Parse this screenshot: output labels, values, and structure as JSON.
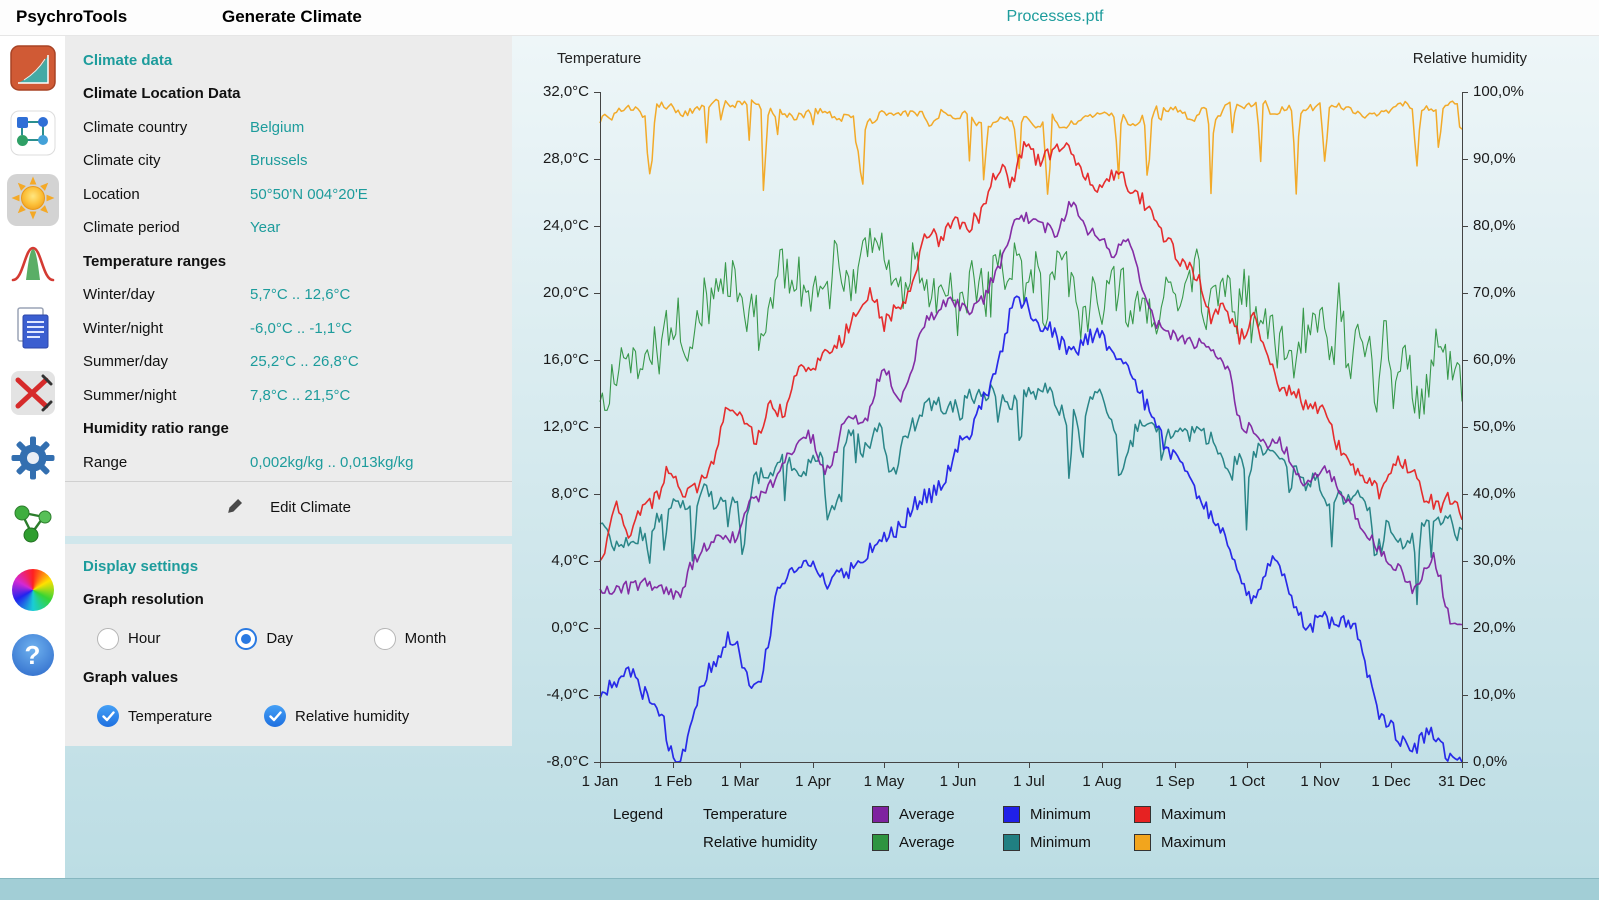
{
  "app": {
    "name": "PsychroTools",
    "screen_title": "Generate Climate",
    "document_title": "Processes.ptf"
  },
  "sidebar": {
    "tools": [
      {
        "icon": "psychrometric-chart-icon",
        "selected": false
      },
      {
        "icon": "process-scheme-icon",
        "selected": false
      },
      {
        "icon": "sun-climate-icon",
        "selected": true
      },
      {
        "icon": "distribution-curve-icon",
        "selected": false
      },
      {
        "icon": "report-document-icon",
        "selected": false
      },
      {
        "icon": "mixing-streams-icon",
        "selected": false
      },
      {
        "icon": "gear-settings-icon",
        "selected": false
      },
      {
        "icon": "linked-nodes-icon",
        "selected": false
      },
      {
        "icon": "color-wheel-icon",
        "selected": false
      },
      {
        "icon": "help-icon",
        "glyph": "?",
        "selected": false
      }
    ]
  },
  "climate_panel": {
    "section_title": "Climate data",
    "location_header": "Climate Location Data",
    "location_rows": [
      {
        "label": "Climate country",
        "value": "Belgium"
      },
      {
        "label": "Climate city",
        "value": "Brussels"
      },
      {
        "label": "Location",
        "value": "50°50'N  004°20'E"
      },
      {
        "label": "Climate period",
        "value": "Year"
      }
    ],
    "temperature_header": "Temperature ranges",
    "temperature_rows": [
      {
        "label": "Winter/day",
        "value": "5,7°C .. 12,6°C"
      },
      {
        "label": "Winter/night",
        "value": "-6,0°C .. -1,1°C"
      },
      {
        "label": "Summer/day",
        "value": "25,2°C .. 26,8°C"
      },
      {
        "label": "Summer/night",
        "value": "7,8°C .. 21,5°C"
      }
    ],
    "humidity_header": "Humidity ratio range",
    "humidity_rows": [
      {
        "label": "Range",
        "value": "0,002kg/kg .. 0,013kg/kg"
      }
    ],
    "edit_button_label": "Edit Climate"
  },
  "display_panel": {
    "section_title": "Display settings",
    "resolution_header": "Graph resolution",
    "resolution_options": [
      {
        "label": "Hour",
        "selected": false
      },
      {
        "label": "Day",
        "selected": true
      },
      {
        "label": "Month",
        "selected": false
      }
    ],
    "values_header": "Graph values",
    "value_options": [
      {
        "label": "Temperature",
        "checked": true
      },
      {
        "label": "Relative humidity",
        "checked": true
      }
    ]
  },
  "chart": {
    "left_axis_title": "Temperature",
    "right_axis_title": "Relative humidity",
    "legend": {
      "title": "Legend",
      "rows": [
        {
          "group": "Temperature",
          "items": [
            {
              "label": "Average",
              "color": "#7e22a0"
            },
            {
              "label": "Minimum",
              "color": "#2020e8"
            },
            {
              "label": "Maximum",
              "color": "#e62222"
            }
          ]
        },
        {
          "group": "Relative humidity",
          "items": [
            {
              "label": "Average",
              "color": "#2e9440"
            },
            {
              "label": "Minimum",
              "color": "#207f82"
            },
            {
              "label": "Maximum",
              "color": "#f2a51d"
            }
          ]
        }
      ]
    }
  },
  "chart_data": {
    "type": "line",
    "x_unit": "day of year",
    "x_tick_days": [
      0,
      31,
      59,
      90,
      120,
      151,
      181,
      212,
      243,
      273,
      304,
      334,
      364
    ],
    "x_tick_labels": [
      "1 Jan",
      "1 Feb",
      "1 Mar",
      "1 Apr",
      "1 May",
      "1 Jun",
      "1 Jul",
      "1 Aug",
      "1 Sep",
      "1 Oct",
      "1 Nov",
      "1 Dec",
      "31 Dec"
    ],
    "temp_axis": {
      "title": "Temperature",
      "min": -8,
      "max": 32,
      "tick_step": 4,
      "tick_labels": [
        "32,0°C",
        "28,0°C",
        "24,0°C",
        "20,0°C",
        "16,0°C",
        "12,0°C",
        "8,0°C",
        "4,0°C",
        "0,0°C",
        "-4,0°C",
        "-8,0°C"
      ]
    },
    "rh_axis": {
      "title": "Relative humidity",
      "min": 0,
      "max": 100,
      "tick_step": 10,
      "tick_labels": [
        "100,0%",
        "90,0%",
        "80,0%",
        "70,0%",
        "60,0%",
        "50,0%",
        "40,0%",
        "30,0%",
        "20,0%",
        "10,0%",
        "0,0%"
      ]
    },
    "series": [
      {
        "name": "Relative humidity / Maximum",
        "axis": "rh",
        "color": "#f2a51d",
        "width": 1.5,
        "monthly_values": [
          97.5,
          97,
          97.5,
          96.5,
          97,
          96,
          95.5,
          96,
          96.5,
          97.5,
          97,
          97.5,
          97.5
        ],
        "noise": {
          "seed": 7,
          "period": 5,
          "amp": 1.2,
          "jitter": 0.5,
          "dip": 13
        }
      },
      {
        "name": "Relative humidity / Average",
        "axis": "rh",
        "color": "#2e9440",
        "width": 1.1,
        "monthly_values": [
          60,
          65,
          69,
          72,
          73,
          72,
          70,
          70,
          71,
          69,
          63,
          58,
          57
        ],
        "noise": {
          "seed": 8,
          "period": 4,
          "amp": 5.5,
          "jitter": 4.0
        }
      },
      {
        "name": "Relative humidity / Minimum",
        "axis": "rh",
        "color": "#207f82",
        "width": 1.5,
        "monthly_values": [
          34,
          37,
          41,
          45,
          50,
          53,
          54,
          53,
          51,
          46,
          41,
          36,
          35
        ],
        "noise": {
          "seed": 9,
          "period": 7,
          "amp": 2.6,
          "jitter": 1.3,
          "dip": 10
        }
      },
      {
        "name": "Temperature / Maximum",
        "axis": "temp",
        "color": "#e62222",
        "width": 1.6,
        "monthly_values": [
          5.5,
          8.5,
          12,
          15.5,
          19.5,
          24.5,
          27.5,
          27,
          22.5,
          17.5,
          12.5,
          9,
          7
        ],
        "noise": {
          "seed": 10,
          "period": 6,
          "amp": 1.5,
          "jitter": 0.5
        }
      },
      {
        "name": "Temperature / Average",
        "axis": "temp",
        "color": "#7e22a0",
        "width": 1.6,
        "monthly_values": [
          1,
          3.5,
          6.5,
          10,
          14.5,
          19.5,
          25,
          24,
          18.5,
          13,
          8,
          4,
          2
        ],
        "noise": {
          "seed": 11,
          "period": 8,
          "amp": 1.7,
          "jitter": 0.4
        }
      },
      {
        "name": "Temperature / Minimum",
        "axis": "temp",
        "color": "#2020e8",
        "width": 1.7,
        "monthly_values": [
          -6,
          -4.5,
          -1.5,
          2.5,
          7.5,
          12.5,
          17,
          15.5,
          10.5,
          5,
          0.5,
          -3.5,
          -7
        ],
        "noise": {
          "seed": 12,
          "period": 11,
          "amp": 3.6,
          "jitter": 0.5
        }
      }
    ]
  },
  "colors": {
    "accent_teal": "#1d9c9c",
    "chart_bg_top": "#eef6f8",
    "chart_bg_bottom": "#bcdde4",
    "panel_bg": "#ececec",
    "bottom_bar": "#a2ced6"
  }
}
